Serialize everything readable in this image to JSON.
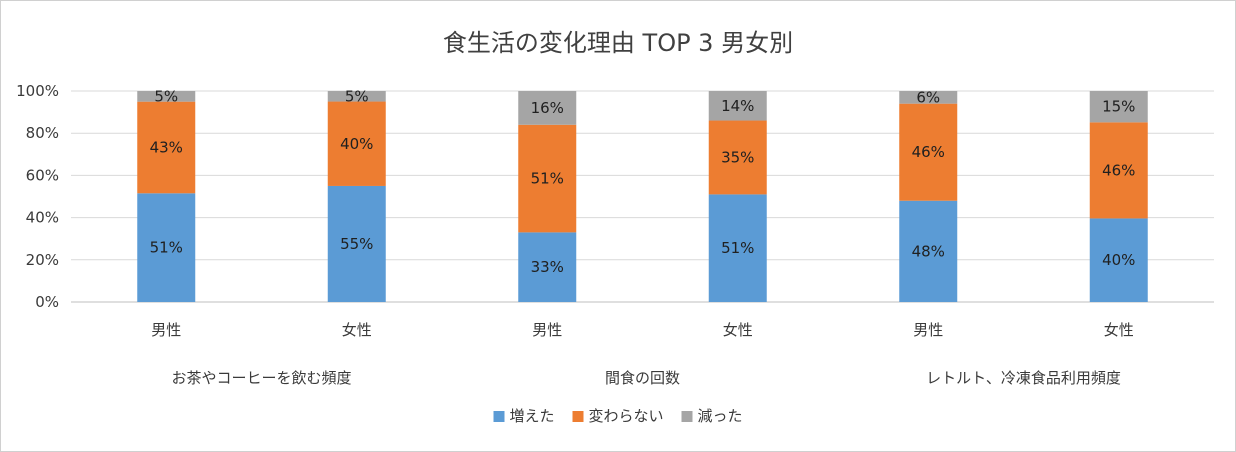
{
  "chart_data": {
    "type": "bar",
    "stacking": "percent",
    "title": "食生活の変化理由 TOP 3 男女別",
    "groups": [
      "お茶やコーヒーを飲む頻度",
      "間食の回数",
      "レトルト、冷凍食品利用頻度"
    ],
    "categories": [
      "男性",
      "女性",
      "男性",
      "女性",
      "男性",
      "女性"
    ],
    "series": [
      {
        "name": "増えた",
        "color": "#5b9bd5",
        "values": [
          51,
          55,
          33,
          51,
          48,
          40
        ]
      },
      {
        "name": "変わらない",
        "color": "#ed7d31",
        "values": [
          43,
          40,
          51,
          35,
          46,
          46
        ]
      },
      {
        "name": "減った",
        "color": "#a5a5a5",
        "values": [
          5,
          5,
          16,
          14,
          6,
          15
        ]
      }
    ],
    "y_ticks": [
      "0%",
      "20%",
      "40%",
      "60%",
      "80%",
      "100%"
    ],
    "ylim": [
      0,
      100
    ],
    "grid": true,
    "legend": "bottom"
  }
}
